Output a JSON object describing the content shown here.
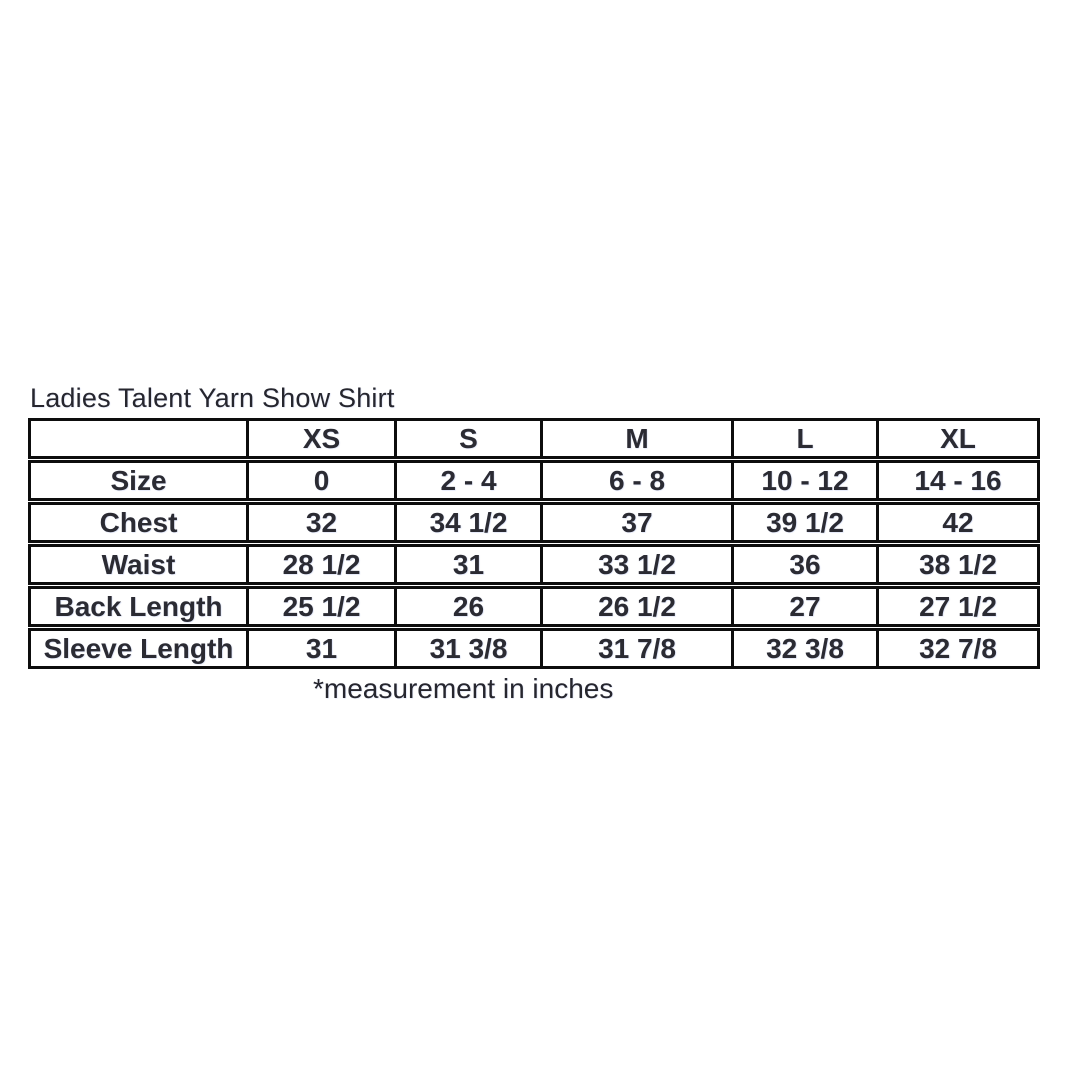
{
  "page": {
    "title": "Ladies Talent Yarn Show Shirt",
    "footnote": "*measurement in inches"
  },
  "size_chart": {
    "corner_label": "",
    "columns": [
      "XS",
      "S",
      "M",
      "L",
      "XL"
    ],
    "rows": [
      {
        "label": "Size",
        "values": [
          "0",
          "2 - 4",
          "6 - 8",
          "10 - 12",
          "14 - 16"
        ]
      },
      {
        "label": "Chest",
        "values": [
          "32",
          "34 1/2",
          "37",
          "39 1/2",
          "42"
        ]
      },
      {
        "label": "Waist",
        "values": [
          "28 1/2",
          "31",
          "33 1/2",
          "36",
          "38 1/2"
        ]
      },
      {
        "label": "Back Length",
        "values": [
          "25 1/2",
          "26",
          "26 1/2",
          "27",
          "27 1/2"
        ]
      },
      {
        "label": "Sleeve Length",
        "values": [
          "31",
          "31 3/8",
          "31 7/8",
          "32 3/8",
          "32 7/8"
        ]
      }
    ],
    "units_note": "inches"
  },
  "colors": {
    "text": "#2b2b33",
    "border": "#0d0d0d",
    "background": "#ffffff"
  }
}
